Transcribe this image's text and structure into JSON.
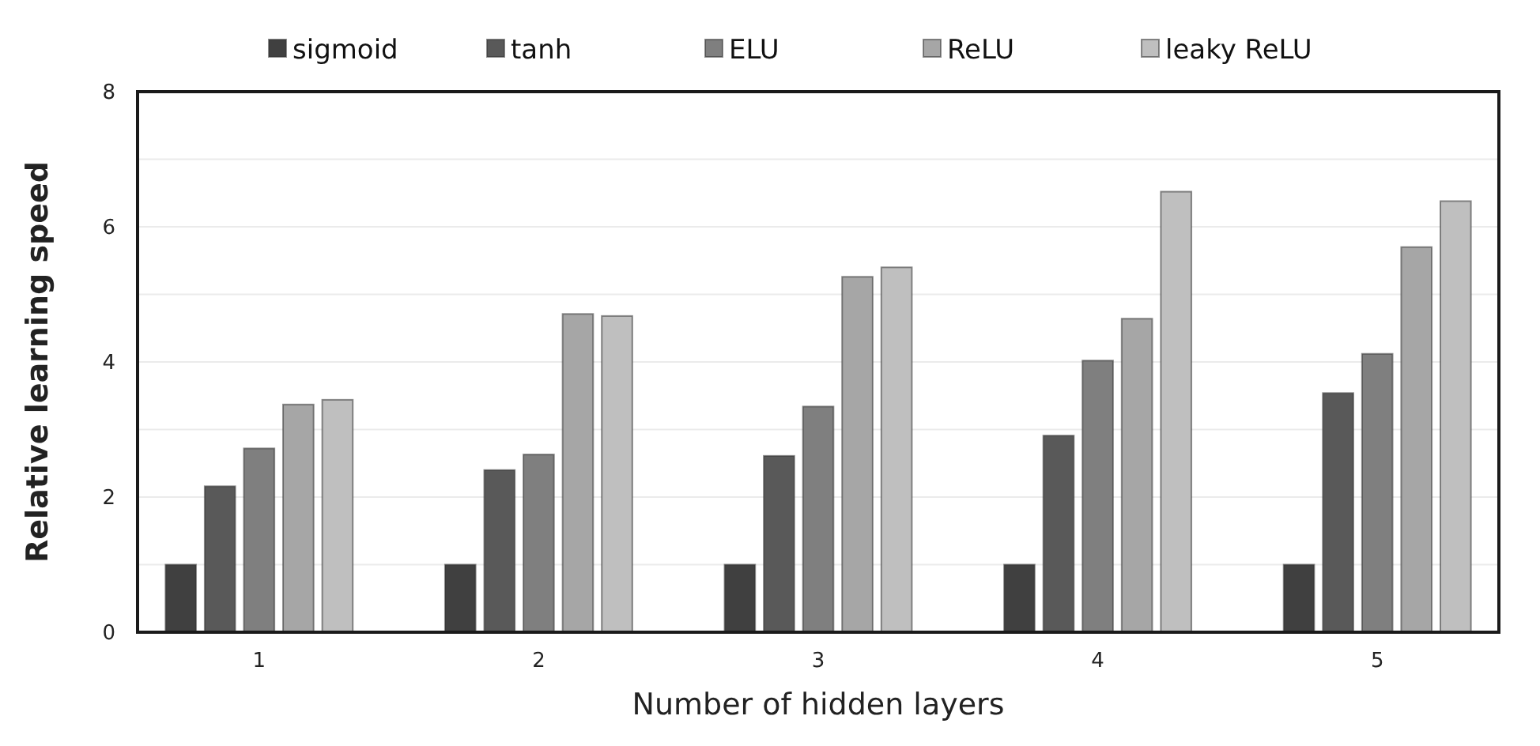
{
  "chart_data": {
    "type": "bar",
    "xlabel": "Number of hidden layers",
    "ylabel": "Relative learning speed",
    "categories": [
      "1",
      "2",
      "3",
      "4",
      "5"
    ],
    "series": [
      {
        "name": "sigmoid",
        "color": "#404040",
        "values": [
          1,
          1,
          1,
          1,
          1
        ]
      },
      {
        "name": "tanh",
        "color": "#595959",
        "values": [
          2.16,
          2.4,
          2.61,
          2.91,
          3.54
        ]
      },
      {
        "name": "ELU",
        "color": "#7f7f7f",
        "values": [
          2.72,
          2.63,
          3.34,
          4.02,
          4.12
        ]
      },
      {
        "name": "ReLU",
        "color": "#a6a6a6",
        "values": [
          3.37,
          4.71,
          5.26,
          4.64,
          5.7
        ]
      },
      {
        "name": "leaky ReLU",
        "color": "#bfbfbf",
        "values": [
          3.44,
          4.68,
          5.4,
          6.52,
          6.38
        ]
      }
    ],
    "ylim": [
      0,
      8
    ],
    "yticks": [
      0,
      {
        "value": 1,
        "label": null
      },
      2,
      {
        "value": 3,
        "label": null
      },
      4,
      {
        "value": 5,
        "label": null
      },
      6,
      {
        "value": 7,
        "label": null
      },
      8
    ],
    "grid": "y",
    "legend": "top"
  }
}
